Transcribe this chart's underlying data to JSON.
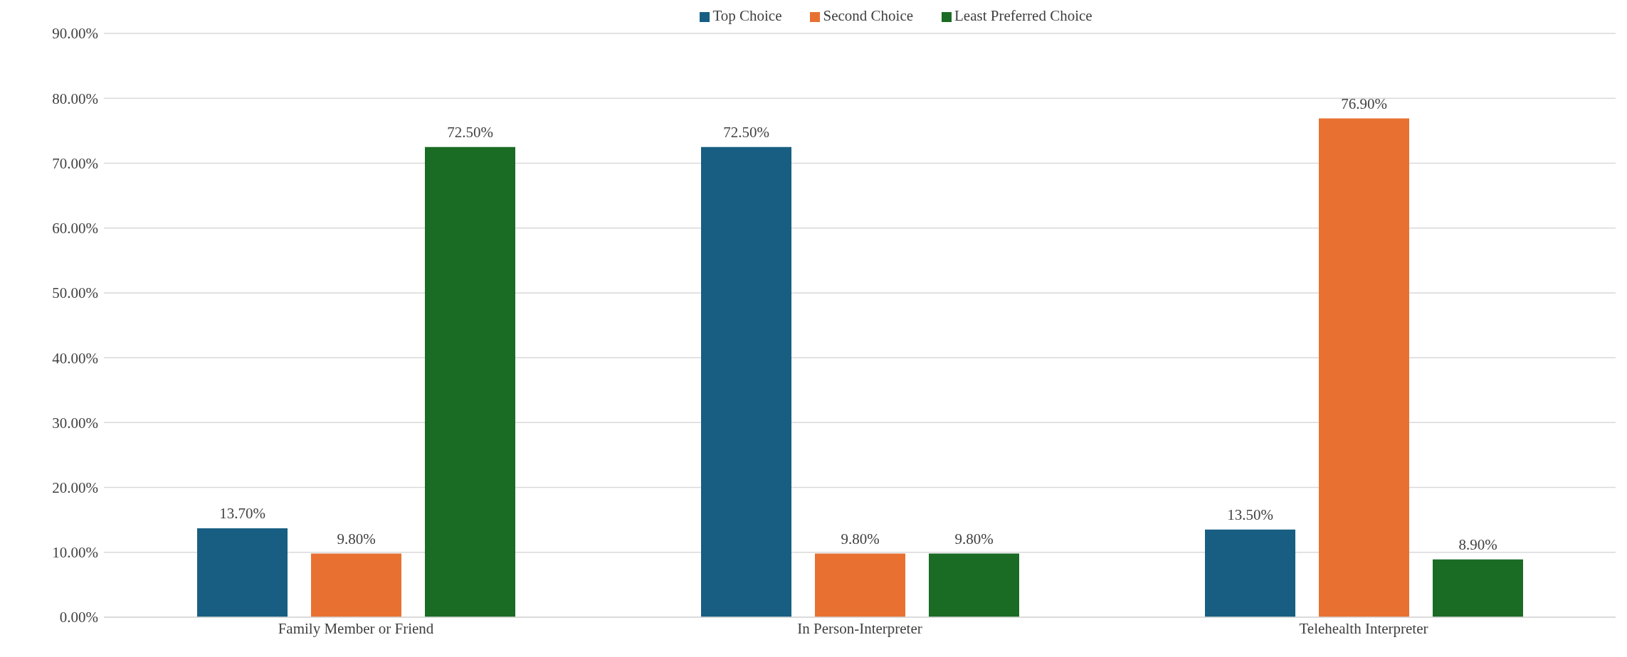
{
  "chart_data": {
    "type": "bar",
    "categories": [
      "Family Member or Friend",
      "In Person-Interpreter",
      "Telehealth Interpreter"
    ],
    "series": [
      {
        "name": "Top Choice",
        "color": "#175e82",
        "values": [
          13.7,
          72.5,
          13.5
        ],
        "value_labels": [
          "13.70%",
          "72.50%",
          "13.50%"
        ]
      },
      {
        "name": "Second Choice",
        "color": "#e87132",
        "values": [
          9.8,
          9.8,
          76.9
        ],
        "value_labels": [
          "9.80%",
          "9.80%",
          "76.90%"
        ]
      },
      {
        "name": "Least Preferred Choice",
        "color": "#1a6b24",
        "values": [
          72.5,
          9.8,
          8.9
        ],
        "value_labels": [
          "72.50%",
          "9.80%",
          "8.90%"
        ]
      }
    ],
    "ylim": [
      0,
      90
    ],
    "yticks": [
      {
        "value": 0,
        "label": "0.00%"
      },
      {
        "value": 10,
        "label": "10.00%"
      },
      {
        "value": 20,
        "label": "20.00%"
      },
      {
        "value": 30,
        "label": "30.00%"
      },
      {
        "value": 40,
        "label": "40.00%"
      },
      {
        "value": 50,
        "label": "50.00%"
      },
      {
        "value": 60,
        "label": "60.00%"
      },
      {
        "value": 70,
        "label": "70.00%"
      },
      {
        "value": 80,
        "label": "80.00%"
      },
      {
        "value": 90,
        "label": "90.00%"
      }
    ],
    "grid": "y",
    "legend": "top"
  }
}
